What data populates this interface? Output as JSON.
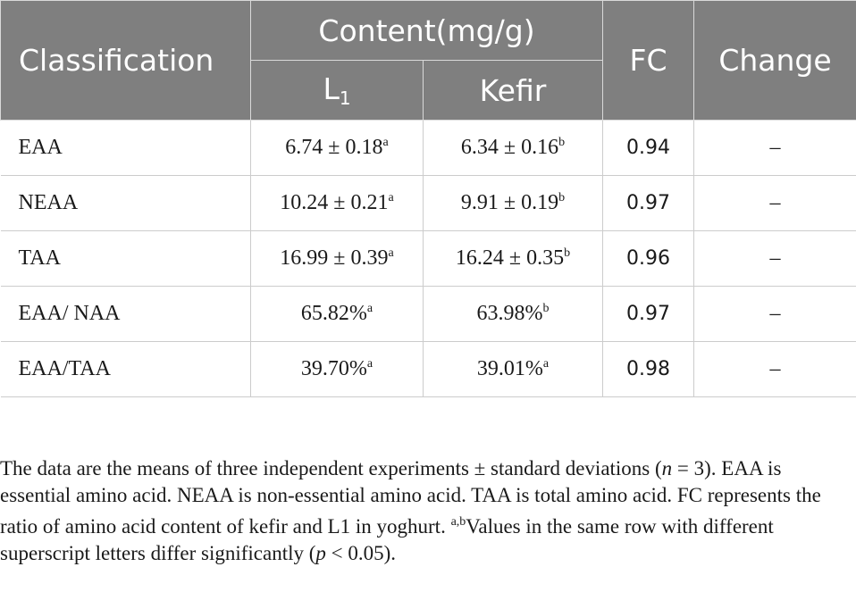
{
  "header": {
    "classification": "Classification",
    "content": "Content(mg/g)",
    "fc": "FC",
    "change": "Change",
    "l1_base": "L",
    "l1_sub": "1",
    "kefir": "Kefir"
  },
  "rows": [
    {
      "label": "EAA",
      "l1": "6.74 ± 0.18",
      "l1_sup": "a",
      "kefir": "6.34 ± 0.16",
      "kefir_sup": "b",
      "fc": "0.94",
      "change": "–"
    },
    {
      "label": "NEAA",
      "l1": "10.24 ± 0.21",
      "l1_sup": "a",
      "kefir": "9.91 ± 0.19",
      "kefir_sup": "b",
      "fc": "0.97",
      "change": "–"
    },
    {
      "label": "TAA",
      "l1": "16.99 ± 0.39",
      "l1_sup": "a",
      "kefir": "16.24 ± 0.35",
      "kefir_sup": "b",
      "fc": "0.96",
      "change": "–"
    },
    {
      "label": "EAA/ NAA",
      "l1": "65.82%",
      "l1_sup": "a",
      "kefir": "63.98%",
      "kefir_sup": "b",
      "fc": "0.97",
      "change": "–"
    },
    {
      "label": "EAA/TAA",
      "l1": "39.70%",
      "l1_sup": "a",
      "kefir": "39.01%",
      "kefir_sup": "a",
      "fc": "0.98",
      "change": "–"
    }
  ],
  "footnote": {
    "part1": "The data are the means of three independent experiments ± standard deviations (",
    "n_italic": "n",
    "part2": " = 3). EAA is essential amino acid. NEAA is non-essential amino acid. TAA is total amino acid. FC represents the ratio of amino acid content of kefir and L1 in yoghurt. ",
    "sup_letters": "a,b",
    "part3": "Values in the same row with different superscript letters differ significantly (",
    "p_italic": "p",
    "part4": " < 0.05)."
  }
}
